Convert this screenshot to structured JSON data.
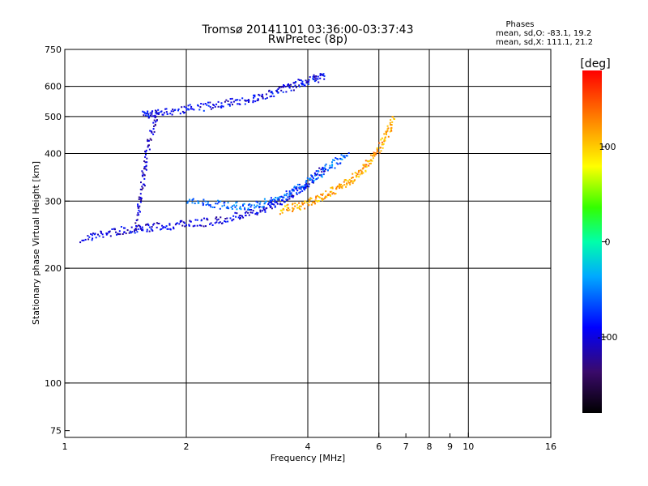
{
  "chart_data": {
    "type": "scatter",
    "title": "Tromsø 20141101 03:36:00-03:37:43",
    "subtitle": "RwPretec (8p)",
    "xlabel": "Frequency [MHz]",
    "ylabel": "Stationary phase Virtual Height [km]",
    "x_scale": "log",
    "y_scale": "log",
    "xlim": [
      1,
      16
    ],
    "ylim": [
      72,
      750
    ],
    "x_ticks": [
      1,
      2,
      4,
      6,
      8,
      10,
      16
    ],
    "x_minor_ticks": [
      7,
      9
    ],
    "y_ticks": [
      75,
      100,
      200,
      300,
      400,
      500,
      600,
      750
    ],
    "grid": true,
    "phase_box": {
      "title": "Phases",
      "line_o": "mean, sd,O: -83.1, 19.2",
      "line_x": "mean, sd,X: 111.1, 21.2"
    },
    "colorbar": {
      "label": "[deg]",
      "range": [
        -180,
        180
      ],
      "ticks": [
        "100",
        "0",
        "-100"
      ],
      "colormap": "jet-black-to-red"
    },
    "traces": [
      {
        "mode": "O",
        "x": [
          1.1,
          1.3,
          1.5,
          1.7,
          2.0,
          2.4,
          2.8,
          3.2,
          3.6,
          4.0,
          4.4
        ],
        "y": [
          240,
          250,
          255,
          258,
          262,
          268,
          278,
          292,
          310,
          335,
          370
        ],
        "phase": -100
      },
      {
        "mode": "X",
        "x": [
          3.4,
          3.8,
          4.2,
          4.6,
          5.0,
          5.4,
          5.8,
          6.2,
          6.5
        ],
        "y": [
          285,
          292,
          305,
          320,
          338,
          360,
          395,
          440,
          500
        ],
        "phase": 115
      },
      {
        "mode": "F2-upper",
        "x": [
          1.55,
          1.7,
          2.0,
          2.4,
          2.8,
          3.2,
          3.6,
          4.0,
          4.4
        ],
        "y": [
          505,
          515,
          525,
          540,
          555,
          575,
          600,
          625,
          640
        ],
        "phase": -95
      },
      {
        "mode": "mid",
        "x": [
          2.0,
          2.4,
          2.8,
          3.2,
          3.6,
          4.0,
          4.5,
          5.0
        ],
        "y": [
          300,
          295,
          292,
          300,
          315,
          340,
          370,
          400
        ],
        "phase": -60
      },
      {
        "mode": "vertical-spread",
        "x": [
          1.5,
          1.55,
          1.6,
          1.7
        ],
        "y": [
          260,
          330,
          420,
          520
        ],
        "phase": -110
      }
    ]
  }
}
